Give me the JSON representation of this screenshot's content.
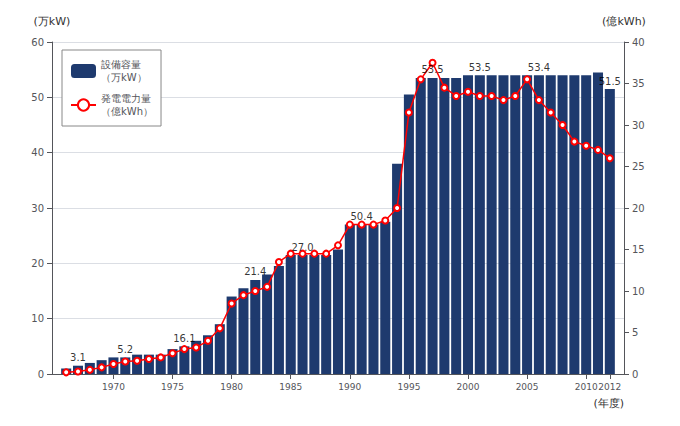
{
  "chart_data": {
    "type": "bar",
    "x": [
      1966,
      1967,
      1968,
      1969,
      1970,
      1971,
      1972,
      1973,
      1974,
      1975,
      1976,
      1977,
      1978,
      1979,
      1980,
      1981,
      1982,
      1983,
      1984,
      1985,
      1986,
      1987,
      1988,
      1989,
      1990,
      1991,
      1992,
      1993,
      1994,
      1995,
      1996,
      1997,
      1998,
      1999,
      2000,
      2001,
      2002,
      2003,
      2004,
      2005,
      2006,
      2007,
      2008,
      2009,
      2010,
      2011,
      2012
    ],
    "series": [
      {
        "name": "設備容量\n（万kW）",
        "type": "bar",
        "color": "#1e3a6e",
        "values": [
          1.0,
          1.5,
          2.0,
          2.5,
          3.0,
          3.0,
          3.5,
          3.5,
          3.5,
          4.5,
          5.0,
          6.0,
          7.0,
          9.0,
          14.0,
          15.5,
          17.0,
          18.0,
          19.5,
          21.5,
          21.5,
          21.5,
          21.5,
          22.5,
          27.0,
          27.0,
          27.0,
          27.5,
          38.0,
          50.5,
          53.5,
          53.5,
          53.5,
          53.5,
          54.0,
          54.0,
          54.0,
          54.0,
          54.0,
          54.0,
          54.0,
          54.0,
          54.0,
          54.0,
          54.0,
          54.5,
          51.5
        ]
      },
      {
        "name": "発電電力量\n（億kWh）",
        "type": "line",
        "axis": "y2",
        "color": "#ff0000",
        "marker": "circle",
        "values": [
          0.2,
          0.3,
          0.5,
          0.8,
          1.2,
          1.5,
          1.6,
          1.8,
          2.0,
          2.5,
          3.0,
          3.2,
          4.0,
          5.5,
          8.5,
          9.5,
          10.0,
          10.5,
          13.5,
          14.5,
          14.5,
          14.5,
          14.5,
          15.5,
          18.0,
          18.0,
          18.0,
          18.5,
          20.0,
          31.5,
          35.5,
          37.5,
          34.5,
          33.5,
          34.0,
          33.5,
          33.5,
          33.0,
          33.5,
          35.5,
          33.0,
          31.5,
          30.0,
          28.0,
          27.5,
          27.0,
          26.0
        ]
      }
    ],
    "xlabel": "(年度)",
    "ylabel": "(万kW)",
    "y2label": "(億kWh)",
    "xlim": [
      1964.8,
      2013.2
    ],
    "xticks": [
      1970,
      1975,
      1980,
      1985,
      1990,
      1995,
      2000,
      2005,
      2010,
      2012
    ],
    "ylim": [
      0,
      60
    ],
    "yticks": [
      0,
      10,
      20,
      30,
      40,
      50,
      60
    ],
    "y2lim": [
      0,
      40
    ],
    "y2ticks": [
      0,
      5,
      10,
      15,
      20,
      25,
      30,
      35,
      40
    ],
    "annotations": [
      {
        "x": 1967,
        "y": 1.5,
        "text": "3.1"
      },
      {
        "x": 1971,
        "y": 3.0,
        "text": "5.2"
      },
      {
        "x": 1976,
        "y": 5.0,
        "text": "16.1"
      },
      {
        "x": 1982,
        "y": 17.0,
        "text": "21.4"
      },
      {
        "x": 1986,
        "y": 21.5,
        "text": "27.0"
      },
      {
        "x": 1991,
        "y": 27.0,
        "text": "50.4"
      },
      {
        "x": 1997,
        "y": 53.5,
        "text": "53.5"
      },
      {
        "x": 2001,
        "y": 54.0,
        "text": "53.5"
      },
      {
        "x": 2006,
        "y": 54.0,
        "text": "53.4"
      },
      {
        "x": 2012,
        "y": 51.5,
        "text": "51.5"
      }
    ],
    "grid": true,
    "legend": "upper left"
  }
}
